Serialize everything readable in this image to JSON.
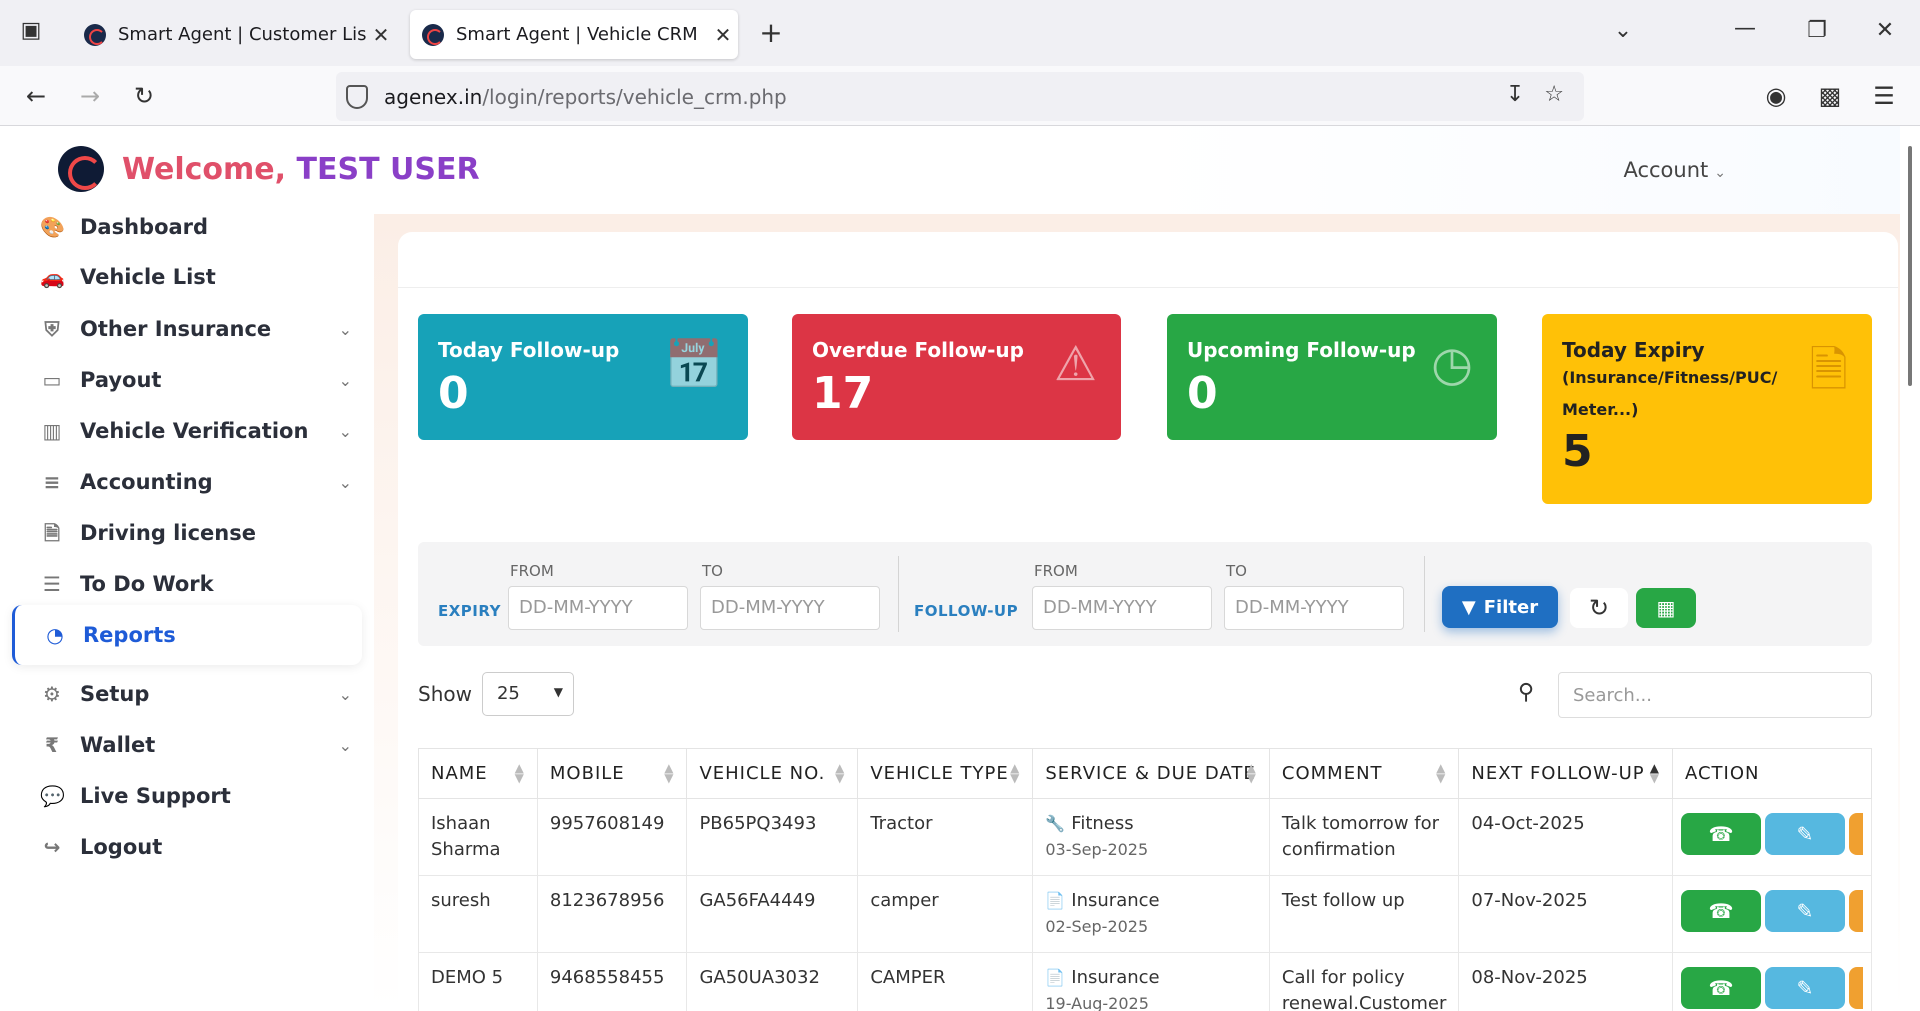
{
  "browser": {
    "tabs": [
      {
        "title": "Smart Agent | Customer List",
        "active": false
      },
      {
        "title": "Smart Agent | Vehicle CRM",
        "active": true
      }
    ],
    "url_host": "agenex.in",
    "url_path": "/login/reports/vehicle_crm.php"
  },
  "header": {
    "welcome": "Welcome,",
    "user": "TEST USER",
    "account": "Account"
  },
  "sidebar": {
    "items": [
      {
        "label": "Dashboard",
        "icon": "palette-icon",
        "has_submenu": false
      },
      {
        "label": "Vehicle List",
        "icon": "car-icon",
        "has_submenu": false
      },
      {
        "label": "Other Insurance",
        "icon": "shield-icon",
        "has_submenu": true
      },
      {
        "label": "Payout",
        "icon": "credit-card-icon",
        "has_submenu": true
      },
      {
        "label": "Vehicle Verification",
        "icon": "building-icon",
        "has_submenu": true
      },
      {
        "label": "Accounting",
        "icon": "sliders-icon",
        "has_submenu": true
      },
      {
        "label": "Driving license",
        "icon": "file-icon",
        "has_submenu": false
      },
      {
        "label": "To Do Work",
        "icon": "list-icon",
        "has_submenu": false
      },
      {
        "label": "Reports",
        "icon": "pie-chart-icon",
        "has_submenu": false,
        "active": true
      },
      {
        "label": "Setup",
        "icon": "gear-icon",
        "has_submenu": true
      },
      {
        "label": "Wallet",
        "icon": "rupee-icon",
        "has_submenu": true
      },
      {
        "label": "Live Support",
        "icon": "chat-icon",
        "has_submenu": false
      },
      {
        "label": "Logout",
        "icon": "logout-icon",
        "has_submenu": false
      }
    ]
  },
  "cards": {
    "today": {
      "title": "Today Follow-up",
      "value": "0",
      "color": "#17a2b8"
    },
    "overdue": {
      "title": "Overdue Follow-up",
      "value": "17",
      "color": "#dc3545"
    },
    "upcoming": {
      "title": "Upcoming Follow-up",
      "value": "0",
      "color": "#28a745"
    },
    "expiry": {
      "title": "Today Expiry",
      "subtitle": "(Insurance/Fitness/PUC/ Meter...)",
      "value": "5",
      "color": "#ffc107"
    }
  },
  "filters": {
    "expiry_label": "EXPIRY",
    "followup_label": "FOLLOW-UP",
    "from_label": "FROM",
    "to_label": "TO",
    "date_placeholder": "DD-MM-YYYY",
    "filter_button": "Filter"
  },
  "table_controls": {
    "show_label": "Show",
    "page_size": "25",
    "search_placeholder": "Search..."
  },
  "table": {
    "columns": [
      "NAME",
      "MOBILE",
      "VEHICLE NO.",
      "VEHICLE TYPE",
      "SERVICE & DUE DATE",
      "COMMENT",
      "NEXT FOLLOW-UP",
      "ACTION"
    ],
    "rows": [
      {
        "name": "Ishaan Sharma",
        "mobile": "9957608149",
        "vehicle_no": "PB65PQ3493",
        "vehicle_type": "Tractor",
        "service": "Fitness",
        "service_icon": "wrench-icon",
        "due_date": "03-Sep-2025",
        "comment": "Talk tomorrow for confirmation",
        "next_followup": "04-Oct-2025"
      },
      {
        "name": "suresh",
        "mobile": "8123678956",
        "vehicle_no": "GA56FA4449",
        "vehicle_type": "camper",
        "service": "Insurance",
        "service_icon": "document-icon",
        "due_date": "02-Sep-2025",
        "comment": "Test follow up",
        "next_followup": "07-Nov-2025"
      },
      {
        "name": "DEMO 5",
        "mobile": "9468558455",
        "vehicle_no": "GA50UA3032",
        "vehicle_type": "CAMPER",
        "service": "Insurance",
        "service_icon": "document-icon",
        "due_date": "19-Aug-2025",
        "comment": "Call for policy renewal.Customer",
        "next_followup": "08-Nov-2025"
      }
    ]
  }
}
